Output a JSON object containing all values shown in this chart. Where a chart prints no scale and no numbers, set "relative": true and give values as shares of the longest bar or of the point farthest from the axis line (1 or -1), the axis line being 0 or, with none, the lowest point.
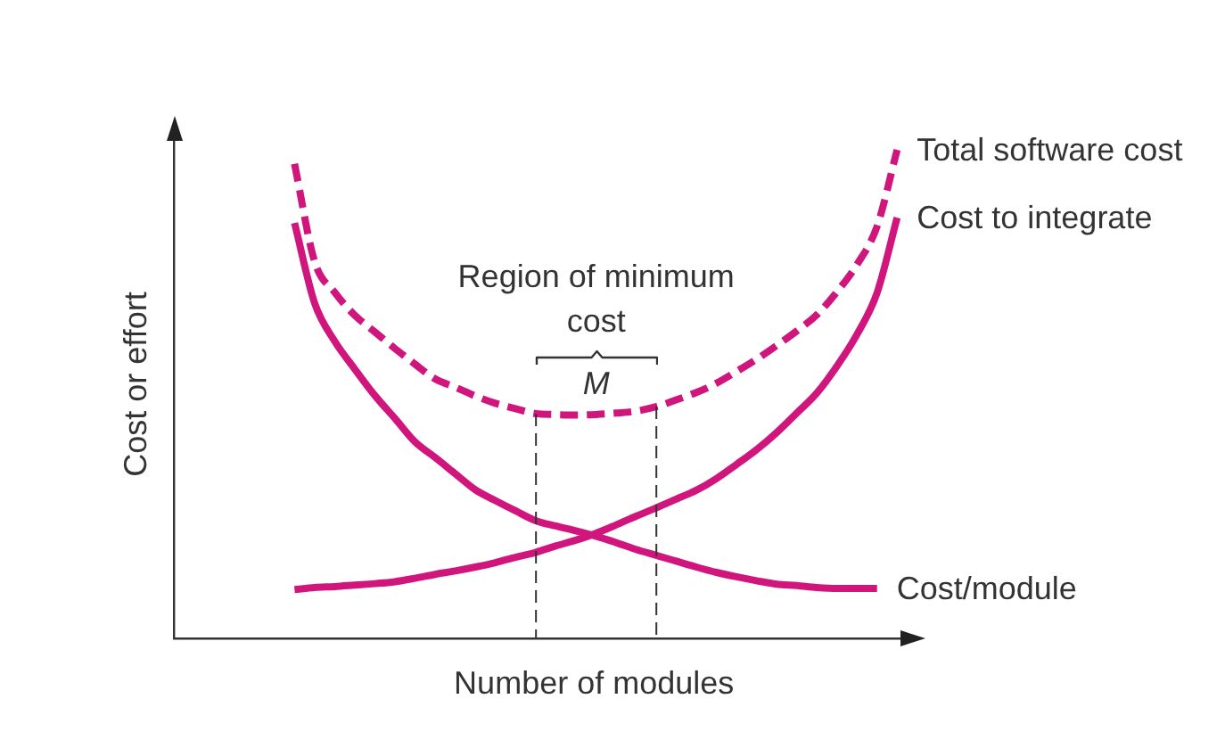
{
  "chart_data": {
    "type": "line",
    "xlabel": "Number of modules",
    "ylabel": "Cost or effort",
    "relative": true,
    "tick_labels": false,
    "grid": false,
    "legend": false,
    "marker": "none",
    "annotations": [
      "Region of minimum cost",
      "M"
    ],
    "categories": [
      null,
      null,
      null,
      null,
      null,
      null,
      null,
      null,
      null,
      null,
      null,
      null,
      null,
      null,
      null,
      null,
      null,
      null,
      null,
      null,
      null,
      null,
      null,
      null,
      null,
      null,
      null,
      null,
      null,
      null,
      null,
      null,
      null,
      null,
      null,
      null,
      null,
      null
    ],
    "series": [
      {
        "name": "Total software cost",
        "color": "#d0167c",
        "line_style": "dashed",
        "values": [
          null,
          null,
          null,
          null,
          null,
          null,
          0.971,
          0.771,
          0.708,
          0.661,
          0.627,
          0.593,
          0.561,
          0.531,
          0.514,
          0.496,
          0.481,
          0.47,
          0.46,
          0.458,
          0.457,
          0.458,
          0.461,
          0.465,
          0.474,
          0.488,
          0.503,
          0.522,
          0.546,
          0.571,
          0.599,
          0.629,
          0.662,
          0.709,
          0.765,
          0.843,
          1,
          null
        ]
      },
      {
        "name": "Cost to integrate",
        "color": "#d0167c",
        "line_style": "solid",
        "values": [
          null,
          null,
          null,
          null,
          null,
          null,
          0.1,
          0.104,
          0.106,
          0.109,
          0.112,
          0.116,
          0.123,
          0.131,
          0.138,
          0.146,
          0.155,
          0.166,
          0.176,
          0.189,
          0.201,
          0.215,
          0.232,
          0.25,
          0.267,
          0.285,
          0.303,
          0.327,
          0.356,
          0.386,
          0.421,
          0.461,
          0.502,
          0.557,
          0.622,
          0.707,
          0.861,
          null
        ]
      },
      {
        "name": "Cost/module",
        "color": "#d0167c",
        "line_style": "solid",
        "values": [
          null,
          null,
          null,
          null,
          null,
          null,
          0.85,
          0.686,
          0.608,
          0.551,
          0.497,
          0.45,
          0.402,
          0.37,
          0.337,
          0.304,
          0.282,
          0.261,
          0.241,
          0.23,
          0.22,
          0.209,
          0.196,
          0.182,
          0.17,
          0.158,
          0.146,
          0.135,
          0.126,
          0.118,
          0.111,
          0.108,
          0.104,
          0.102,
          0.102,
          0.102,
          null,
          null
        ]
      }
    ]
  }
}
